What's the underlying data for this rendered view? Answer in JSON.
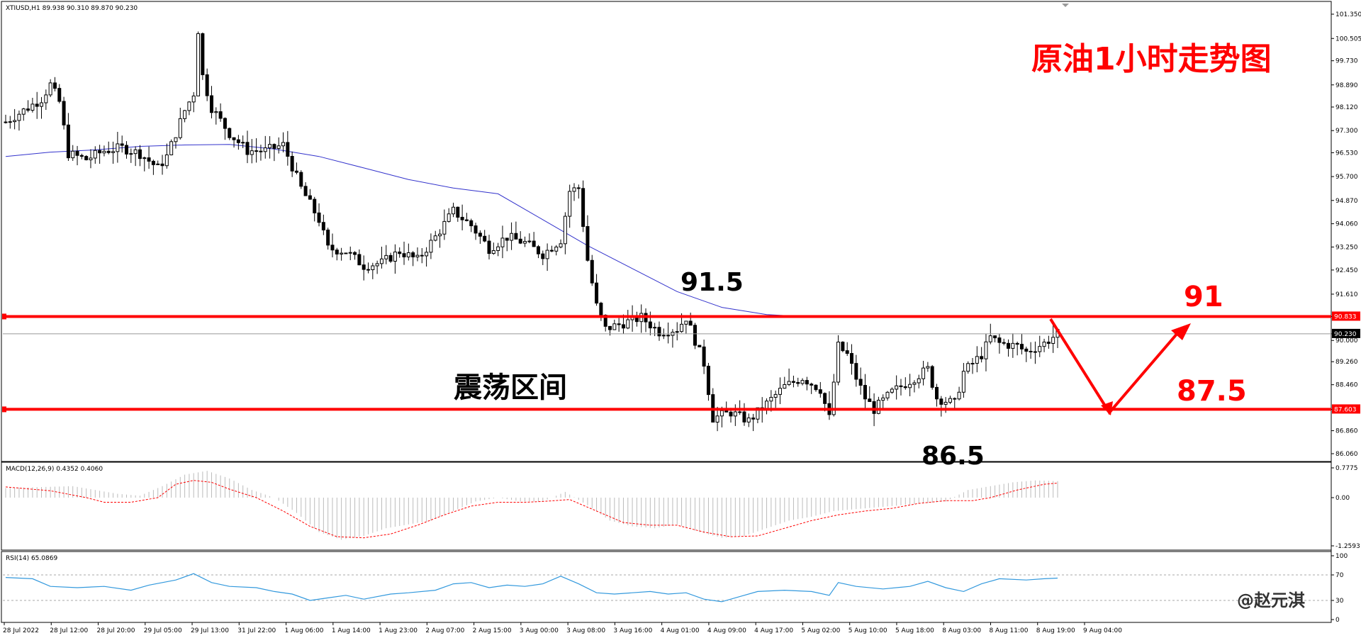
{
  "header": {
    "symbol_info": "XTIUSD,H1  89.938 90.310 89.870 90.230"
  },
  "annotations": {
    "title": "原油1小时走势图",
    "range_label": "震荡区间",
    "high_label": "91.5",
    "low_label": "86.5",
    "target_up": "91",
    "target_down": "87.5",
    "watermark": "@赵元淇"
  },
  "colors": {
    "resistance_line": "#ff0000",
    "moving_average": "#3333cc",
    "macd_signal": "#ff0000",
    "rsi_line": "#3399dd",
    "annotation": "#ff0000"
  },
  "chart_data": [
    {
      "type": "candlestick",
      "symbol": "XTIUSD",
      "timeframe": "H1",
      "ohlc_header": {
        "open": 89.938,
        "high": 90.31,
        "low": 89.87,
        "close": 90.23
      },
      "price_axis": [
        "101.350",
        "100.505",
        "99.730",
        "98.890",
        "98.120",
        "97.300",
        "96.530",
        "95.700",
        "94.870",
        "94.060",
        "93.250",
        "92.450",
        "91.610",
        "90.833",
        "90.230",
        "90.000",
        "89.260",
        "88.460",
        "87.603",
        "86.860",
        "86.060"
      ],
      "ylim": [
        86.06,
        101.35
      ],
      "time_axis": [
        "28 Jul 2022",
        "28 Jul 12:00",
        "28 Jul 20:00",
        "29 Jul 05:00",
        "29 Jul 13:00",
        "31 Jul 22:00",
        "1 Aug 06:00",
        "1 Aug 14:00",
        "1 Aug 23:00",
        "2 Aug 07:00",
        "2 Aug 15:00",
        "3 Aug 00:00",
        "3 Aug 08:00",
        "3 Aug 16:00",
        "4 Aug 01:00",
        "4 Aug 09:00",
        "4 Aug 17:00",
        "5 Aug 02:00",
        "5 Aug 10:00",
        "5 Aug 18:00",
        "8 Aug 03:00",
        "8 Aug 11:00",
        "8 Aug 19:00",
        "9 Aug 04:00"
      ],
      "horizontal_levels": [
        {
          "label": "90.833",
          "value": 90.833
        },
        {
          "label": "87.603",
          "value": 87.603
        }
      ],
      "current_price": 90.23,
      "moving_average": [
        [
          0,
          96.4
        ],
        [
          10,
          96.55
        ],
        [
          20,
          96.63
        ],
        [
          30,
          96.75
        ],
        [
          40,
          96.8
        ],
        [
          50,
          96.82
        ],
        [
          60,
          96.66
        ],
        [
          70,
          96.4
        ],
        [
          80,
          96.0
        ],
        [
          90,
          95.6
        ],
        [
          100,
          95.3
        ],
        [
          110,
          95.1
        ],
        [
          120,
          94.2
        ],
        [
          130,
          93.3
        ],
        [
          140,
          92.5
        ],
        [
          150,
          91.7
        ],
        [
          160,
          91.15
        ],
        [
          170,
          90.9
        ],
        [
          176,
          90.85
        ]
      ],
      "price_path": [
        [
          0,
          97.6
        ],
        [
          4,
          98.0
        ],
        [
          8,
          98.4
        ],
        [
          10,
          98.9
        ],
        [
          12,
          98.3
        ],
        [
          14,
          96.5
        ],
        [
          18,
          96.3
        ],
        [
          22,
          96.6
        ],
        [
          26,
          96.7
        ],
        [
          30,
          96.5
        ],
        [
          34,
          96.0
        ],
        [
          36,
          96.4
        ],
        [
          40,
          98.0
        ],
        [
          42,
          98.6
        ],
        [
          43,
          100.8
        ],
        [
          44,
          99.2
        ],
        [
          46,
          98.1
        ],
        [
          50,
          97.2
        ],
        [
          54,
          96.6
        ],
        [
          58,
          96.6
        ],
        [
          62,
          96.8
        ],
        [
          66,
          95.3
        ],
        [
          70,
          94.2
        ],
        [
          72,
          93.2
        ],
        [
          76,
          93.1
        ],
        [
          80,
          92.6
        ],
        [
          84,
          92.7
        ],
        [
          88,
          93.1
        ],
        [
          92,
          92.8
        ],
        [
          96,
          93.6
        ],
        [
          100,
          94.5
        ],
        [
          104,
          94.0
        ],
        [
          108,
          93.2
        ],
        [
          112,
          93.6
        ],
        [
          116,
          93.4
        ],
        [
          120,
          93.0
        ],
        [
          124,
          93.5
        ],
        [
          126,
          95.2
        ],
        [
          128,
          95.3
        ],
        [
          130,
          92.8
        ],
        [
          132,
          91.2
        ],
        [
          134,
          90.4
        ],
        [
          138,
          90.6
        ],
        [
          142,
          90.8
        ],
        [
          146,
          90.3
        ],
        [
          150,
          90.4
        ],
        [
          152,
          90.8
        ],
        [
          156,
          89.2
        ],
        [
          158,
          87.3
        ],
        [
          162,
          87.5
        ],
        [
          166,
          87.2
        ],
        [
          170,
          87.8
        ],
        [
          174,
          88.4
        ],
        [
          178,
          88.7
        ],
        [
          182,
          88.3
        ],
        [
          184,
          87.3
        ],
        [
          186,
          89.8
        ],
        [
          188,
          89.5
        ],
        [
          190,
          88.7
        ],
        [
          192,
          88.0
        ],
        [
          194,
          87.6
        ],
        [
          198,
          88.2
        ],
        [
          202,
          88.6
        ],
        [
          206,
          89.0
        ],
        [
          208,
          88.0
        ],
        [
          212,
          87.8
        ],
        [
          214,
          88.9
        ],
        [
          218,
          89.5
        ],
        [
          220,
          90.1
        ],
        [
          222,
          89.9
        ],
        [
          226,
          89.8
        ],
        [
          228,
          89.6
        ],
        [
          232,
          89.9
        ],
        [
          235,
          90.23
        ]
      ],
      "price_min": 86.6,
      "price_max": 101.0
    },
    {
      "type": "bar",
      "name": "MACD(12,26,9) 0.4352 0.4060",
      "yticks": [
        "0.7775",
        "0.00",
        "-1.2593"
      ],
      "ylim": [
        -1.2593,
        0.7775
      ],
      "histogram": [
        [
          0,
          0.25
        ],
        [
          15,
          0.3
        ],
        [
          25,
          0.1
        ],
        [
          30,
          0.05
        ],
        [
          35,
          0.3
        ],
        [
          40,
          0.6
        ],
        [
          45,
          0.7
        ],
        [
          50,
          0.5
        ],
        [
          55,
          0.2
        ],
        [
          60,
          0.0
        ],
        [
          65,
          -0.4
        ],
        [
          70,
          -0.9
        ],
        [
          75,
          -1.1
        ],
        [
          80,
          -1.0
        ],
        [
          85,
          -0.8
        ],
        [
          90,
          -0.7
        ],
        [
          95,
          -0.6
        ],
        [
          100,
          -0.35
        ],
        [
          105,
          -0.1
        ],
        [
          110,
          0.0
        ],
        [
          115,
          -0.1
        ],
        [
          120,
          -0.1
        ],
        [
          125,
          0.15
        ],
        [
          130,
          -0.2
        ],
        [
          135,
          -0.6
        ],
        [
          140,
          -0.75
        ],
        [
          145,
          -0.8
        ],
        [
          150,
          -0.7
        ],
        [
          155,
          -0.9
        ],
        [
          160,
          -1.05
        ],
        [
          165,
          -1.0
        ],
        [
          170,
          -0.8
        ],
        [
          175,
          -0.6
        ],
        [
          180,
          -0.5
        ],
        [
          185,
          -0.35
        ],
        [
          190,
          -0.3
        ],
        [
          195,
          -0.25
        ],
        [
          200,
          -0.2
        ],
        [
          205,
          -0.15
        ],
        [
          210,
          -0.1
        ],
        [
          215,
          0.2
        ],
        [
          220,
          0.3
        ],
        [
          225,
          0.4
        ],
        [
          230,
          0.45
        ],
        [
          235,
          0.43
        ]
      ],
      "signal": [
        [
          0,
          0.28
        ],
        [
          10,
          0.18
        ],
        [
          18,
          0.0
        ],
        [
          22,
          -0.12
        ],
        [
          28,
          -0.12
        ],
        [
          34,
          0.0
        ],
        [
          38,
          0.35
        ],
        [
          42,
          0.45
        ],
        [
          46,
          0.4
        ],
        [
          50,
          0.22
        ],
        [
          56,
          0.0
        ],
        [
          62,
          -0.35
        ],
        [
          68,
          -0.75
        ],
        [
          74,
          -1.02
        ],
        [
          80,
          -1.05
        ],
        [
          86,
          -0.95
        ],
        [
          92,
          -0.72
        ],
        [
          98,
          -0.45
        ],
        [
          104,
          -0.22
        ],
        [
          110,
          -0.12
        ],
        [
          116,
          -0.12
        ],
        [
          120,
          -0.1
        ],
        [
          126,
          -0.05
        ],
        [
          132,
          -0.35
        ],
        [
          138,
          -0.65
        ],
        [
          144,
          -0.72
        ],
        [
          150,
          -0.72
        ],
        [
          156,
          -0.9
        ],
        [
          162,
          -1.02
        ],
        [
          168,
          -1.0
        ],
        [
          174,
          -0.8
        ],
        [
          180,
          -0.6
        ],
        [
          186,
          -0.45
        ],
        [
          192,
          -0.35
        ],
        [
          198,
          -0.28
        ],
        [
          204,
          -0.15
        ],
        [
          210,
          -0.08
        ],
        [
          216,
          -0.08
        ],
        [
          220,
          0.0
        ],
        [
          226,
          0.2
        ],
        [
          232,
          0.35
        ],
        [
          235,
          0.38
        ]
      ]
    },
    {
      "type": "line",
      "name": "RSI(14) 65.0869",
      "yticks": [
        "100",
        "70",
        "30",
        "0"
      ],
      "ylim": [
        0,
        100
      ],
      "levels": [
        70,
        30
      ],
      "values": [
        [
          0,
          66
        ],
        [
          6,
          64
        ],
        [
          10,
          52
        ],
        [
          16,
          50
        ],
        [
          22,
          52
        ],
        [
          28,
          46
        ],
        [
          32,
          54
        ],
        [
          38,
          62
        ],
        [
          42,
          72
        ],
        [
          46,
          58
        ],
        [
          50,
          52
        ],
        [
          56,
          50
        ],
        [
          60,
          44
        ],
        [
          64,
          40
        ],
        [
          68,
          30
        ],
        [
          72,
          34
        ],
        [
          76,
          38
        ],
        [
          80,
          32
        ],
        [
          86,
          40
        ],
        [
          90,
          42
        ],
        [
          96,
          46
        ],
        [
          100,
          56
        ],
        [
          104,
          58
        ],
        [
          108,
          50
        ],
        [
          112,
          54
        ],
        [
          116,
          52
        ],
        [
          120,
          56
        ],
        [
          124,
          68
        ],
        [
          128,
          56
        ],
        [
          132,
          42
        ],
        [
          136,
          40
        ],
        [
          140,
          42
        ],
        [
          144,
          44
        ],
        [
          148,
          40
        ],
        [
          152,
          42
        ],
        [
          156,
          32
        ],
        [
          160,
          28
        ],
        [
          164,
          36
        ],
        [
          168,
          44
        ],
        [
          174,
          46
        ],
        [
          180,
          44
        ],
        [
          184,
          38
        ],
        [
          186,
          58
        ],
        [
          190,
          52
        ],
        [
          196,
          48
        ],
        [
          202,
          52
        ],
        [
          206,
          60
        ],
        [
          210,
          50
        ],
        [
          214,
          44
        ],
        [
          218,
          56
        ],
        [
          222,
          64
        ],
        [
          228,
          62
        ],
        [
          232,
          64
        ],
        [
          235,
          65
        ]
      ]
    }
  ]
}
